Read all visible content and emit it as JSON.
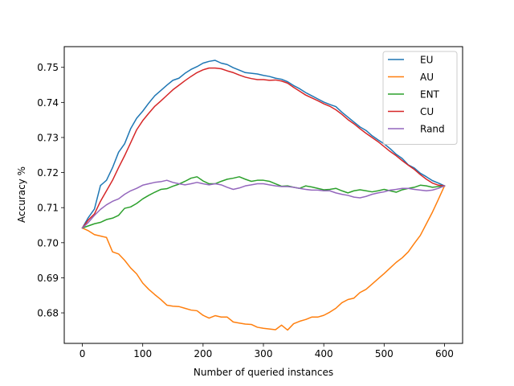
{
  "chart_data": {
    "type": "line",
    "xlabel": "Number of queried instances",
    "ylabel": "Accuracy %",
    "xlim": [
      -30,
      630
    ],
    "ylim": [
      0.6713,
      0.7559
    ],
    "xticks": [
      0,
      100,
      200,
      300,
      400,
      500,
      600
    ],
    "yticks": [
      0.68,
      0.69,
      0.7,
      0.71,
      0.72,
      0.73,
      0.74,
      0.75
    ],
    "ytick_labels": [
      "0.68",
      "0.69",
      "0.70",
      "0.71",
      "0.72",
      "0.73",
      "0.74",
      "0.75"
    ],
    "legend_position": "top-right",
    "grid": false,
    "series": [
      {
        "name": "EU",
        "color": "#1f77b4",
        "x": [
          0,
          10,
          20,
          30,
          40,
          50,
          60,
          70,
          80,
          90,
          100,
          110,
          120,
          130,
          140,
          150,
          160,
          170,
          180,
          190,
          200,
          210,
          220,
          230,
          240,
          250,
          260,
          270,
          280,
          290,
          300,
          310,
          320,
          330,
          340,
          350,
          360,
          370,
          380,
          390,
          400,
          410,
          420,
          430,
          440,
          450,
          460,
          470,
          480,
          490,
          500,
          510,
          520,
          530,
          540,
          550,
          560,
          570,
          580,
          590,
          600
        ],
        "y": [
          0.7042,
          0.7072,
          0.7096,
          0.7163,
          0.7178,
          0.7214,
          0.7258,
          0.7282,
          0.7325,
          0.7355,
          0.7375,
          0.7398,
          0.7419,
          0.7434,
          0.7449,
          0.7463,
          0.7469,
          0.7483,
          0.7494,
          0.7502,
          0.7512,
          0.7517,
          0.752,
          0.7512,
          0.7508,
          0.7499,
          0.7492,
          0.7485,
          0.7483,
          0.7481,
          0.7477,
          0.7474,
          0.7469,
          0.7466,
          0.7459,
          0.7448,
          0.7439,
          0.7428,
          0.7419,
          0.741,
          0.7401,
          0.7394,
          0.7388,
          0.7372,
          0.7358,
          0.7344,
          0.733,
          0.732,
          0.7305,
          0.7293,
          0.7282,
          0.7268,
          0.7252,
          0.724,
          0.7222,
          0.7213,
          0.7198,
          0.7188,
          0.7177,
          0.717,
          0.7162
        ]
      },
      {
        "name": "AU",
        "color": "#ff7f0e",
        "x": [
          0,
          10,
          20,
          30,
          40,
          50,
          60,
          70,
          80,
          90,
          100,
          110,
          120,
          130,
          140,
          150,
          160,
          170,
          180,
          190,
          200,
          210,
          220,
          230,
          240,
          250,
          260,
          270,
          280,
          290,
          300,
          310,
          320,
          330,
          340,
          350,
          360,
          370,
          380,
          390,
          400,
          410,
          420,
          430,
          440,
          450,
          460,
          470,
          480,
          490,
          500,
          510,
          520,
          530,
          540,
          550,
          560,
          570,
          580,
          590,
          600
        ],
        "y": [
          0.7042,
          0.7034,
          0.7023,
          0.7019,
          0.7015,
          0.6974,
          0.6968,
          0.695,
          0.6928,
          0.6911,
          0.6885,
          0.6867,
          0.6852,
          0.6838,
          0.6822,
          0.6819,
          0.6818,
          0.6813,
          0.6808,
          0.6806,
          0.6793,
          0.6785,
          0.6792,
          0.6788,
          0.6788,
          0.6774,
          0.6771,
          0.6768,
          0.6767,
          0.6759,
          0.6756,
          0.6754,
          0.6752,
          0.6765,
          0.6751,
          0.6769,
          0.6776,
          0.6781,
          0.6788,
          0.6788,
          0.6793,
          0.6802,
          0.6813,
          0.6829,
          0.6838,
          0.6842,
          0.6858,
          0.6867,
          0.6882,
          0.6897,
          0.6912,
          0.6928,
          0.6944,
          0.6957,
          0.6974,
          0.6998,
          0.7021,
          0.7054,
          0.7087,
          0.7124,
          0.7162
        ]
      },
      {
        "name": "ENT",
        "color": "#2ca02c",
        "x": [
          0,
          10,
          20,
          30,
          40,
          50,
          60,
          70,
          80,
          90,
          100,
          110,
          120,
          130,
          140,
          150,
          160,
          170,
          180,
          190,
          200,
          210,
          220,
          230,
          240,
          250,
          260,
          270,
          280,
          290,
          300,
          310,
          320,
          330,
          340,
          350,
          360,
          370,
          380,
          390,
          400,
          410,
          420,
          430,
          440,
          450,
          460,
          470,
          480,
          490,
          500,
          510,
          520,
          530,
          540,
          550,
          560,
          570,
          580,
          590,
          600
        ],
        "y": [
          0.7042,
          0.7048,
          0.7054,
          0.7058,
          0.7066,
          0.707,
          0.7078,
          0.7098,
          0.7102,
          0.7112,
          0.7125,
          0.7135,
          0.7144,
          0.7152,
          0.7154,
          0.7161,
          0.7167,
          0.7175,
          0.7184,
          0.7188,
          0.7176,
          0.7168,
          0.7168,
          0.7175,
          0.7181,
          0.7184,
          0.7188,
          0.7181,
          0.7175,
          0.7178,
          0.7178,
          0.7175,
          0.7168,
          0.7161,
          0.7162,
          0.7158,
          0.7155,
          0.7162,
          0.7159,
          0.7155,
          0.7151,
          0.7152,
          0.7155,
          0.7148,
          0.7142,
          0.7148,
          0.7151,
          0.7148,
          0.7145,
          0.7148,
          0.7152,
          0.7148,
          0.7144,
          0.7151,
          0.7155,
          0.7158,
          0.7164,
          0.7162,
          0.7158,
          0.716,
          0.7162
        ]
      },
      {
        "name": "CU",
        "color": "#d62728",
        "x": [
          0,
          10,
          20,
          30,
          40,
          50,
          60,
          70,
          80,
          90,
          100,
          110,
          120,
          130,
          140,
          150,
          160,
          170,
          180,
          190,
          200,
          210,
          220,
          230,
          240,
          250,
          260,
          270,
          280,
          290,
          300,
          310,
          320,
          330,
          340,
          350,
          360,
          370,
          380,
          390,
          400,
          410,
          420,
          430,
          440,
          450,
          460,
          470,
          480,
          490,
          500,
          510,
          520,
          530,
          540,
          550,
          560,
          570,
          580,
          590,
          600
        ],
        "y": [
          0.7042,
          0.7065,
          0.7082,
          0.7118,
          0.7148,
          0.7178,
          0.7214,
          0.7248,
          0.7285,
          0.7322,
          0.7348,
          0.7369,
          0.7389,
          0.7404,
          0.742,
          0.7436,
          0.7449,
          0.7462,
          0.7474,
          0.7485,
          0.7493,
          0.7498,
          0.7498,
          0.7496,
          0.749,
          0.7485,
          0.7478,
          0.7472,
          0.7468,
          0.7465,
          0.7465,
          0.7463,
          0.7464,
          0.7461,
          0.7455,
          0.7443,
          0.7432,
          0.7421,
          0.7413,
          0.7405,
          0.7396,
          0.7389,
          0.7379,
          0.7366,
          0.7351,
          0.7339,
          0.7325,
          0.7312,
          0.73,
          0.7288,
          0.7274,
          0.726,
          0.7248,
          0.7234,
          0.7221,
          0.7209,
          0.7194,
          0.7181,
          0.717,
          0.7164,
          0.7162
        ]
      },
      {
        "name": "Rand",
        "color": "#9467bd",
        "x": [
          0,
          10,
          20,
          30,
          40,
          50,
          60,
          70,
          80,
          90,
          100,
          110,
          120,
          130,
          140,
          150,
          160,
          170,
          180,
          190,
          200,
          210,
          220,
          230,
          240,
          250,
          260,
          270,
          280,
          290,
          300,
          310,
          320,
          330,
          340,
          350,
          360,
          370,
          380,
          390,
          400,
          410,
          420,
          430,
          440,
          450,
          460,
          470,
          480,
          490,
          500,
          510,
          520,
          530,
          540,
          550,
          560,
          570,
          580,
          590,
          600
        ],
        "y": [
          0.7042,
          0.7058,
          0.7078,
          0.7095,
          0.7108,
          0.7118,
          0.7125,
          0.7138,
          0.7148,
          0.7155,
          0.7164,
          0.7168,
          0.7172,
          0.7174,
          0.7178,
          0.7172,
          0.7168,
          0.7165,
          0.7168,
          0.7172,
          0.7168,
          0.7165,
          0.7168,
          0.7165,
          0.7158,
          0.7152,
          0.7156,
          0.7162,
          0.7165,
          0.7168,
          0.7168,
          0.7165,
          0.7162,
          0.716,
          0.716,
          0.7158,
          0.7155,
          0.7152,
          0.715,
          0.715,
          0.7148,
          0.7148,
          0.7142,
          0.7138,
          0.7135,
          0.713,
          0.7128,
          0.7132,
          0.7138,
          0.7142,
          0.7145,
          0.715,
          0.7152,
          0.7155,
          0.7155,
          0.7152,
          0.715,
          0.7148,
          0.715,
          0.7155,
          0.7162
        ]
      }
    ]
  }
}
